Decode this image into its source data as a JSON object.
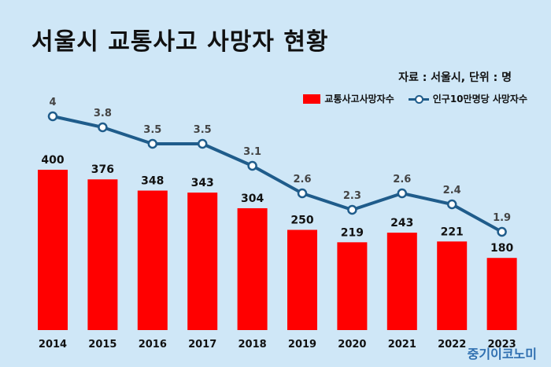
{
  "chart_data": {
    "type": "bar",
    "title": "서울시 교통사고 사망자 현황",
    "source_note": "자료 : 서울시, 단위 : 명",
    "categories": [
      "2014",
      "2015",
      "2016",
      "2017",
      "2018",
      "2019",
      "2020",
      "2021",
      "2022",
      "2023"
    ],
    "series": [
      {
        "name": "교통사고사망자수",
        "type": "bar",
        "color": "#ff0000",
        "values": [
          400,
          376,
          348,
          343,
          304,
          250,
          219,
          243,
          221,
          180
        ]
      },
      {
        "name": "인구10만명당 사망자수",
        "type": "line",
        "color": "#1f5c8b",
        "values": [
          4,
          3.8,
          3.5,
          3.5,
          3.1,
          2.6,
          2.3,
          2.6,
          2.4,
          1.9
        ]
      }
    ],
    "legend_position": "top-right",
    "grid": false
  },
  "watermark": "중기이코노미"
}
